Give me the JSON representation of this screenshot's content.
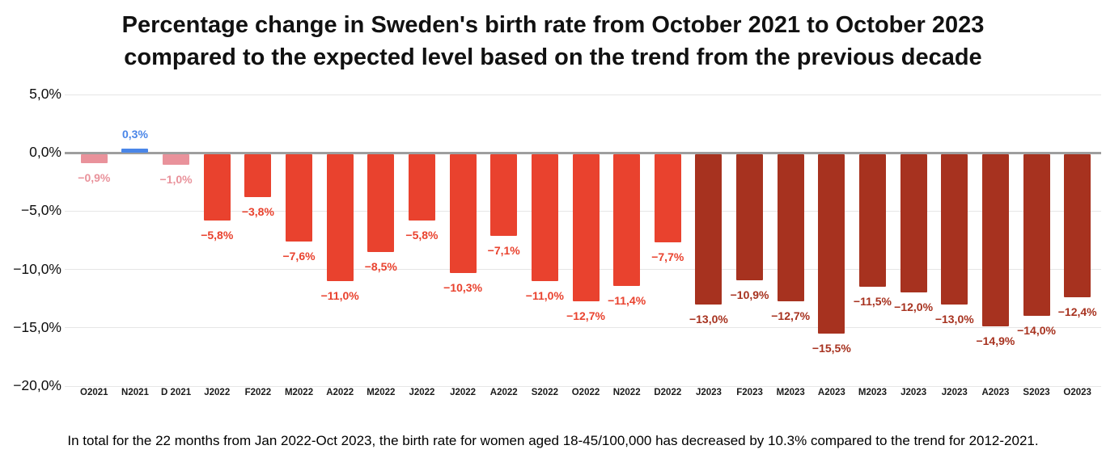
{
  "title": {
    "line1": "Percentage change in Sweden's birth rate from October 2021 to October 2023",
    "line2": "compared to the expected level based on the trend from the previous decade"
  },
  "footnote": "In total for the 22 months from Jan 2022-Oct 2023, the birth rate for women aged 18-45/100,000 has decreased by 10.3% compared to the trend for 2012-2021.",
  "chart_data": {
    "type": "bar",
    "title": "Percentage change in Sweden's birth rate from October 2021 to October 2023 compared to the expected level based on the trend from the previous decade",
    "xlabel": "",
    "ylabel": "",
    "ylim": [
      -20,
      5
    ],
    "grid": true,
    "legend": "none",
    "y_ticks": [
      {
        "value": 5,
        "label": "5,0%"
      },
      {
        "value": 0,
        "label": "0,0%"
      },
      {
        "value": -5,
        "label": "−5,0%"
      },
      {
        "value": -10,
        "label": "−10,0%"
      },
      {
        "value": -15,
        "label": "−15,0%"
      },
      {
        "value": -20,
        "label": "−20,0%"
      }
    ],
    "palette": {
      "pink": "#E9929B",
      "blue": "#4A86E8",
      "red": "#E9422E",
      "dark_red": "#A7321F",
      "axis_line": "#9E9E9E",
      "gridline": "#E6E6E6"
    },
    "categories": [
      "O2021",
      "N2021",
      "D 2021",
      "J2022",
      "F2022",
      "M2022",
      "A2022",
      "M2022",
      "J2022",
      "J2022",
      "A2022",
      "S2022",
      "O2022",
      "N2022",
      "D2022",
      "J2023",
      "F2023",
      "M2023",
      "A2023",
      "M2023",
      "J2023",
      "J2023",
      "A2023",
      "S2023",
      "O2023"
    ],
    "values": [
      -0.9,
      0.3,
      -1.0,
      -5.8,
      -3.8,
      -7.6,
      -11.0,
      -8.5,
      -5.8,
      -10.3,
      -7.1,
      -11.0,
      -12.7,
      -11.4,
      -7.7,
      -13.0,
      -10.9,
      -12.7,
      -15.5,
      -11.5,
      -12.0,
      -13.0,
      -14.9,
      -14.0,
      -12.4
    ],
    "points": [
      {
        "category": "O2021",
        "value": -0.9,
        "label": "−0,9%",
        "color": "pink"
      },
      {
        "category": "N2021",
        "value": 0.3,
        "label": "0,3%",
        "color": "blue"
      },
      {
        "category": "D 2021",
        "value": -1.0,
        "label": "−1,0%",
        "color": "pink"
      },
      {
        "category": "J2022",
        "value": -5.8,
        "label": "−5,8%",
        "color": "red"
      },
      {
        "category": "F2022",
        "value": -3.8,
        "label": "−3,8%",
        "color": "red"
      },
      {
        "category": "M2022",
        "value": -7.6,
        "label": "−7,6%",
        "color": "red"
      },
      {
        "category": "A2022",
        "value": -11.0,
        "label": "−11,0%",
        "color": "red"
      },
      {
        "category": "M2022",
        "value": -8.5,
        "label": "−8,5%",
        "color": "red"
      },
      {
        "category": "J2022",
        "value": -5.8,
        "label": "−5,8%",
        "color": "red"
      },
      {
        "category": "J2022",
        "value": -10.3,
        "label": "−10,3%",
        "color": "red"
      },
      {
        "category": "A2022",
        "value": -7.1,
        "label": "−7,1%",
        "color": "red"
      },
      {
        "category": "S2022",
        "value": -11.0,
        "label": "−11,0%",
        "color": "red"
      },
      {
        "category": "O2022",
        "value": -12.7,
        "label": "−12,7%",
        "color": "red"
      },
      {
        "category": "N2022",
        "value": -11.4,
        "label": "−11,4%",
        "color": "red"
      },
      {
        "category": "D2022",
        "value": -7.7,
        "label": "−7,7%",
        "color": "red"
      },
      {
        "category": "J2023",
        "value": -13.0,
        "label": "−13,0%",
        "color": "dark_red"
      },
      {
        "category": "F2023",
        "value": -10.9,
        "label": "−10,9%",
        "color": "dark_red"
      },
      {
        "category": "M2023",
        "value": -12.7,
        "label": "−12,7%",
        "color": "dark_red"
      },
      {
        "category": "A2023",
        "value": -15.5,
        "label": "−15,5%",
        "color": "dark_red"
      },
      {
        "category": "M2023",
        "value": -11.5,
        "label": "−11,5%",
        "color": "dark_red"
      },
      {
        "category": "J2023",
        "value": -12.0,
        "label": "−12,0%",
        "color": "dark_red"
      },
      {
        "category": "J2023",
        "value": -13.0,
        "label": "−13,0%",
        "color": "dark_red"
      },
      {
        "category": "A2023",
        "value": -14.9,
        "label": "−14,9%",
        "color": "dark_red"
      },
      {
        "category": "S2023",
        "value": -14.0,
        "label": "−14,0%",
        "color": "dark_red"
      },
      {
        "category": "O2023",
        "value": -12.4,
        "label": "−12,4%",
        "color": "dark_red"
      }
    ]
  }
}
